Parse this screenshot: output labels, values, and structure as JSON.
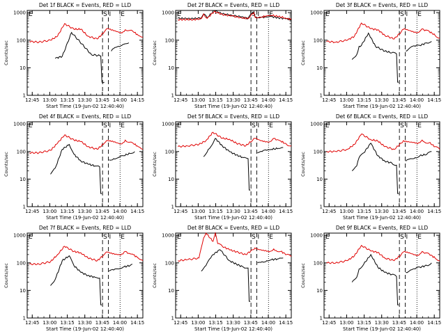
{
  "colors": {
    "events": "#000000",
    "lld": "#e00000",
    "axis": "#000000",
    "background": "#ffffff"
  },
  "common": {
    "ylabel": "Counts/sec",
    "xlabel": "Start Time (19-Jun-02 12:40:40)",
    "xticks": [
      "12:45",
      "13:00",
      "13:15",
      "13:30",
      "13:45",
      "14:00",
      "14:15"
    ],
    "xtick_minutes": [
      4.33,
      19.33,
      34.33,
      49.33,
      64.33,
      79.33,
      94.33
    ],
    "yticks": [
      "1",
      "10",
      "100",
      "1000"
    ],
    "yscale": "log",
    "ylim": [
      1,
      1200
    ],
    "xlim_minutes": [
      0,
      99
    ],
    "markers": {
      "E": "E",
      "S": "S",
      "I": "I"
    }
  },
  "chart_data": [
    {
      "type": "line",
      "title": "Det 1f BLACK = Events, RED = LLD",
      "series": [
        {
          "name": "Events",
          "color": "#000000",
          "x": [
            4,
            19,
            24,
            30,
            38,
            55,
            63,
            64,
            66,
            67,
            68,
            68.5,
            69,
            72,
            74,
            76,
            78,
            80,
            81,
            82,
            83,
            84,
            85,
            87
          ],
          "y": [
            null,
            null,
            22,
            26,
            190,
            30,
            27,
            3,
            3,
            null,
            null,
            null,
            null,
            40,
            50,
            55,
            60,
            62,
            65,
            70,
            72,
            74,
            75,
            80
          ]
        },
        {
          "name": "LLD",
          "color": "#000000",
          "x": [],
          "y": []
        },
        {
          "name": "LLD",
          "color": "#e00000",
          "x": [
            2,
            10,
            20,
            26,
            32,
            40,
            46,
            52,
            60,
            66,
            68,
            70,
            72,
            74,
            76,
            78,
            80,
            82,
            84,
            86,
            90,
            95,
            99
          ],
          "y": [
            90,
            85,
            100,
            140,
            400,
            250,
            250,
            140,
            110,
            200,
            260,
            250,
            230,
            220,
            210,
            200,
            190,
            200,
            240,
            220,
            220,
            150,
            130
          ]
        }
      ],
      "markers": [
        {
          "label": "E",
          "x": 0
        },
        {
          "label": "S",
          "x": 64.5
        },
        {
          "label": "I",
          "x": 69.5
        },
        {
          "label": "E",
          "x": 79.5
        }
      ]
    },
    {
      "type": "line",
      "title": "Det 2f BLACK = Events, RED = LLD",
      "series": [
        {
          "name": "Events",
          "color": "#000000",
          "x": [
            2,
            15,
            22,
            24,
            27,
            33,
            40,
            48,
            56,
            62,
            65,
            67,
            68,
            70,
            73,
            78,
            82,
            88,
            94,
            99
          ],
          "y": [
            620,
            600,
            640,
            900,
            650,
            1200,
            900,
            800,
            700,
            620,
            900,
            1000,
            700,
            650,
            680,
            700,
            720,
            650,
            600,
            560
          ]
        },
        {
          "name": "LLD",
          "color": "#e00000",
          "x": [
            2,
            15,
            22,
            24,
            27,
            33,
            40,
            48,
            56,
            62,
            65,
            67,
            68,
            70,
            73,
            78,
            82,
            88,
            94,
            99
          ],
          "y": [
            560,
            560,
            600,
            900,
            620,
            1100,
            860,
            760,
            660,
            600,
            900,
            1000,
            680,
            640,
            680,
            760,
            800,
            720,
            640,
            560
          ]
        }
      ],
      "markers": [
        {
          "label": "E",
          "x": 0
        },
        {
          "label": "S",
          "x": 64.5
        },
        {
          "label": "I",
          "x": 69.5
        },
        {
          "label": "E",
          "x": 79.5
        }
      ]
    },
    {
      "type": "line",
      "title": "Det 3f BLACK = Events, RED = LLD",
      "series": [
        {
          "name": "Events",
          "color": "#000000",
          "x": [
            24,
            28,
            30,
            32,
            38,
            44,
            52,
            58,
            62,
            63,
            64,
            66,
            70,
            74,
            78,
            82,
            88,
            92
          ],
          "y": [
            20,
            30,
            60,
            65,
            180,
            60,
            40,
            35,
            32,
            3,
            3,
            null,
            40,
            55,
            60,
            65,
            80,
            90
          ]
        },
        {
          "name": "LLD",
          "color": "#e00000",
          "x": [
            2,
            10,
            20,
            26,
            32,
            40,
            46,
            52,
            60,
            66,
            68,
            70,
            72,
            74,
            76,
            78,
            80,
            82,
            84,
            86,
            90,
            95,
            99
          ],
          "y": [
            90,
            85,
            100,
            140,
            420,
            260,
            240,
            150,
            110,
            200,
            250,
            240,
            230,
            220,
            210,
            200,
            190,
            210,
            260,
            220,
            210,
            150,
            120
          ]
        }
      ],
      "markers": [
        {
          "label": "E",
          "x": 0
        },
        {
          "label": "S",
          "x": 64.5
        },
        {
          "label": "I",
          "x": 69.5
        },
        {
          "label": "E",
          "x": 79.5
        }
      ]
    },
    {
      "type": "line",
      "title": "Det 4f BLACK = Events, RED = LLD",
      "series": [
        {
          "name": "Events",
          "color": "#000000",
          "x": [
            20,
            24,
            30,
            36,
            40,
            46,
            52,
            58,
            62,
            63,
            64,
            66,
            70,
            74,
            78,
            82,
            88,
            92
          ],
          "y": [
            15,
            25,
            120,
            180,
            80,
            45,
            35,
            30,
            28,
            3,
            3,
            null,
            50,
            55,
            60,
            70,
            85,
            100
          ]
        },
        {
          "name": "LLD",
          "color": "#e00000",
          "x": [
            2,
            10,
            20,
            26,
            32,
            40,
            46,
            52,
            60,
            66,
            68,
            70,
            72,
            74,
            76,
            78,
            80,
            82,
            84,
            86,
            90,
            95,
            99
          ],
          "y": [
            90,
            90,
            110,
            200,
            400,
            260,
            230,
            150,
            120,
            200,
            250,
            240,
            230,
            220,
            210,
            200,
            190,
            210,
            260,
            220,
            210,
            150,
            120
          ]
        }
      ],
      "markers": [
        {
          "label": "E",
          "x": 0
        },
        {
          "label": "S",
          "x": 64.5
        },
        {
          "label": "I",
          "x": 69.5
        },
        {
          "label": "E",
          "x": 79.5
        }
      ]
    },
    {
      "type": "line",
      "title": "Det 5f BLACK = Events, RED = LLD",
      "series": [
        {
          "name": "Events",
          "color": "#000000",
          "x": [
            24,
            28,
            32,
            34,
            40,
            46,
            52,
            58,
            62,
            63,
            64,
            66,
            70,
            74,
            78,
            82,
            88,
            92
          ],
          "y": [
            65,
            120,
            200,
            300,
            160,
            100,
            75,
            60,
            55,
            4,
            4,
            null,
            90,
            100,
            110,
            120,
            130,
            140
          ]
        },
        {
          "name": "LLD",
          "color": "#e00000",
          "x": [
            2,
            10,
            20,
            26,
            32,
            40,
            46,
            52,
            60,
            66,
            68,
            70,
            72,
            74,
            76,
            78,
            80,
            82,
            84,
            86,
            90,
            95,
            99
          ],
          "y": [
            150,
            160,
            180,
            250,
            500,
            300,
            280,
            200,
            160,
            260,
            300,
            280,
            260,
            250,
            240,
            230,
            220,
            240,
            300,
            260,
            240,
            180,
            160
          ]
        }
      ],
      "markers": [
        {
          "label": "E",
          "x": 0
        },
        {
          "label": "S",
          "x": 64.5
        },
        {
          "label": "I",
          "x": 69.5
        },
        {
          "label": "E",
          "x": 79.5
        }
      ]
    },
    {
      "type": "line",
      "title": "Det 6f BLACK = Events, RED = LLD",
      "series": [
        {
          "name": "Events",
          "color": "#000000",
          "x": [
            24,
            28,
            30,
            34,
            40,
            46,
            52,
            58,
            62,
            63,
            64,
            66,
            70,
            74,
            78,
            82,
            88,
            92
          ],
          "y": [
            20,
            30,
            60,
            90,
            200,
            70,
            45,
            38,
            32,
            3,
            3,
            null,
            45,
            55,
            60,
            70,
            80,
            100
          ]
        },
        {
          "name": "LLD",
          "color": "#e00000",
          "x": [
            2,
            10,
            20,
            26,
            32,
            40,
            46,
            52,
            60,
            66,
            68,
            70,
            72,
            74,
            76,
            78,
            80,
            82,
            84,
            86,
            90,
            95,
            99
          ],
          "y": [
            100,
            100,
            120,
            180,
            430,
            270,
            240,
            150,
            120,
            200,
            250,
            240,
            230,
            220,
            210,
            200,
            190,
            210,
            260,
            220,
            210,
            150,
            120
          ]
        }
      ],
      "markers": [
        {
          "label": "E",
          "x": 0
        },
        {
          "label": "S",
          "x": 64.5
        },
        {
          "label": "I",
          "x": 69.5
        },
        {
          "label": "E",
          "x": 79.5
        }
      ]
    },
    {
      "type": "line",
      "title": "Det 7f BLACK = Events, RED = LLD",
      "series": [
        {
          "name": "Events",
          "color": "#000000",
          "x": [
            20,
            24,
            30,
            36,
            40,
            46,
            52,
            58,
            62,
            63,
            64,
            66,
            70,
            74,
            78,
            82,
            88,
            90
          ],
          "y": [
            15,
            25,
            120,
            180,
            80,
            45,
            35,
            30,
            28,
            3,
            3,
            null,
            50,
            55,
            60,
            70,
            80,
            90
          ]
        },
        {
          "name": "LLD",
          "color": "#e00000",
          "x": [
            2,
            10,
            20,
            26,
            32,
            40,
            46,
            52,
            60,
            66,
            68,
            70,
            72,
            74,
            76,
            78,
            80,
            82,
            84,
            86,
            90,
            95,
            99
          ],
          "y": [
            90,
            90,
            110,
            200,
            400,
            260,
            230,
            150,
            120,
            200,
            250,
            240,
            230,
            220,
            210,
            200,
            190,
            210,
            260,
            220,
            210,
            150,
            120
          ]
        }
      ],
      "markers": [
        {
          "label": "E",
          "x": 0
        },
        {
          "label": "S",
          "x": 64.5
        },
        {
          "label": "I",
          "x": 69.5
        },
        {
          "label": "E",
          "x": 79.5
        }
      ]
    },
    {
      "type": "line",
      "title": "Det 8f BLACK = Events, RED = LLD",
      "series": [
        {
          "name": "Events",
          "color": "#000000",
          "x": [
            22,
            26,
            30,
            32,
            38,
            46,
            52,
            58,
            62,
            63,
            64,
            66,
            70,
            74,
            78,
            82,
            88,
            92
          ],
          "y": [
            50,
            80,
            150,
            200,
            300,
            120,
            90,
            70,
            65,
            4,
            4,
            null,
            100,
            110,
            120,
            130,
            140,
            150
          ]
        },
        {
          "name": "LLD",
          "color": "#e00000",
          "x": [
            2,
            10,
            20,
            24,
            26,
            32,
            34,
            36,
            40,
            46,
            52,
            60,
            66,
            68,
            70,
            72,
            74,
            76,
            78,
            80,
            82,
            84,
            86,
            90,
            95,
            99
          ],
          "y": [
            120,
            130,
            150,
            800,
            1200,
            600,
            1200,
            500,
            400,
            300,
            250,
            200,
            300,
            350,
            320,
            300,
            280,
            270,
            260,
            250,
            270,
            320,
            280,
            260,
            200,
            170
          ]
        }
      ],
      "markers": [
        {
          "label": "E",
          "x": 0
        },
        {
          "label": "S",
          "x": 64.5
        },
        {
          "label": "I",
          "x": 69.5
        },
        {
          "label": "E",
          "x": 79.5
        }
      ]
    },
    {
      "type": "line",
      "title": "Det 9f BLACK = Events, RED = LLD",
      "series": [
        {
          "name": "Events",
          "color": "#000000",
          "x": [
            24,
            28,
            30,
            34,
            40,
            46,
            52,
            58,
            62,
            63,
            64,
            66,
            70,
            74,
            78,
            82,
            88,
            92
          ],
          "y": [
            20,
            30,
            60,
            90,
            200,
            70,
            45,
            38,
            32,
            3,
            3,
            null,
            45,
            55,
            60,
            70,
            80,
            100
          ]
        },
        {
          "name": "LLD",
          "color": "#e00000",
          "x": [
            2,
            10,
            20,
            26,
            32,
            40,
            46,
            52,
            60,
            66,
            68,
            70,
            72,
            74,
            76,
            78,
            80,
            82,
            84,
            86,
            90,
            95,
            99
          ],
          "y": [
            100,
            100,
            120,
            180,
            430,
            270,
            240,
            150,
            120,
            200,
            250,
            240,
            230,
            220,
            210,
            200,
            190,
            210,
            260,
            220,
            210,
            150,
            120
          ]
        }
      ],
      "markers": [
        {
          "label": "E",
          "x": 0
        },
        {
          "label": "S",
          "x": 64.5
        },
        {
          "label": "I",
          "x": 69.5
        },
        {
          "label": "E",
          "x": 79.5
        }
      ]
    }
  ]
}
